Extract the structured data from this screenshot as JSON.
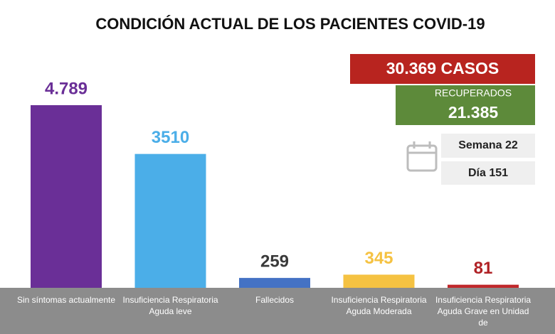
{
  "chart_data": {
    "type": "bar",
    "title": "CONDICIÓN ACTUAL DE LOS PACIENTES COVID-19",
    "categories": [
      "Sin síntomas actualmente",
      "Insuficiencia Respiratoria Aguda leve",
      "Fallecidos",
      "Insuficiencia Respiratoria Aguda Moderada",
      "Insuficiencia Respiratoria Aguda Grave en Unidad de"
    ],
    "values": [
      4789,
      3510,
      259,
      345,
      81
    ],
    "value_labels": [
      "4.789",
      "3510",
      "259",
      "345",
      "81"
    ],
    "colors": [
      "#6a2f97",
      "#4baee8",
      "#4472c4",
      "#f5c242",
      "#c0282b"
    ],
    "label_colors": [
      "#6a2f97",
      "#4baee8",
      "#3a3a3a",
      "#f5c242",
      "#b02226"
    ],
    "annotations": {
      "total": "30.369 CASOS",
      "recovered_label": "RECUPERADOS",
      "recovered": "21.385",
      "week": "Semana 22",
      "day": "Día 151"
    }
  }
}
